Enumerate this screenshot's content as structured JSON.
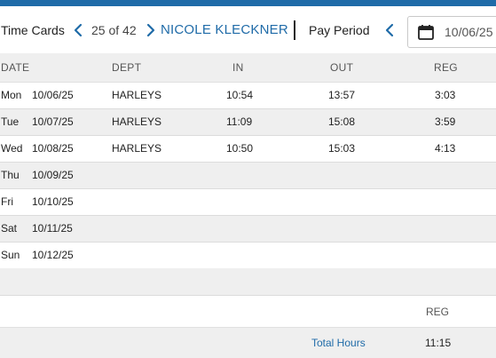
{
  "header": {
    "title": "Time Cards",
    "record_position": "25 of 42",
    "employee_name": "NICOLE KLECKNER",
    "pay_period_label": "Pay Period",
    "pay_period_date": "10/06/25"
  },
  "colors": {
    "accent": "#1f6ba8",
    "row_alt": "#efefef"
  },
  "icons": {
    "prev_record": "chevron-left-icon",
    "next_record": "chevron-right-icon",
    "prev_period": "chevron-left-icon",
    "calendar": "calendar-icon"
  },
  "table": {
    "columns": [
      "DATE",
      "DEPT",
      "IN",
      "OUT",
      "REG"
    ],
    "rows": [
      {
        "day": "Mon",
        "date": "10/06/25",
        "dept": "HARLEYS",
        "in": "10:54",
        "out": "13:57",
        "reg": "3:03"
      },
      {
        "day": "Tue",
        "date": "10/07/25",
        "dept": "HARLEYS",
        "in": "11:09",
        "out": "15:08",
        "reg": "3:59"
      },
      {
        "day": "Wed",
        "date": "10/08/25",
        "dept": "HARLEYS",
        "in": "10:50",
        "out": "15:03",
        "reg": "4:13"
      },
      {
        "day": "Thu",
        "date": "10/09/25",
        "dept": "",
        "in": "",
        "out": "",
        "reg": ""
      },
      {
        "day": "Fri",
        "date": "10/10/25",
        "dept": "",
        "in": "",
        "out": "",
        "reg": ""
      },
      {
        "day": "Sat",
        "date": "10/11/25",
        "dept": "",
        "in": "",
        "out": "",
        "reg": ""
      },
      {
        "day": "Sun",
        "date": "10/12/25",
        "dept": "",
        "in": "",
        "out": "",
        "reg": ""
      }
    ]
  },
  "summary": {
    "reg_header": "REG",
    "total_label": "Total Hours",
    "total_reg": "11:15"
  }
}
